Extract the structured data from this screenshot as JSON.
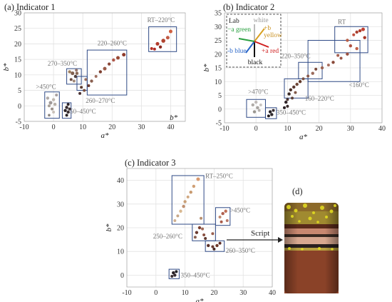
{
  "figure": {
    "script_label": "Script",
    "photo_label": "(d)"
  },
  "chart_data": [
    {
      "type": "scatter",
      "title": "(a) Indicator 1",
      "xlabel": "a*",
      "ylabel": "b*",
      "xlim": [
        -10,
        45
      ],
      "ylim": [
        -5,
        30
      ],
      "xticks": [
        -10,
        0,
        10,
        20,
        30,
        40
      ],
      "yticks": [
        -5,
        0,
        5,
        10,
        15,
        20,
        25,
        30
      ],
      "extra_x_label": "b*",
      "points": [
        {
          "x": 33.5,
          "y": 18.5,
          "c": "#b22d22",
          "r": 2
        },
        {
          "x": 34.5,
          "y": 18.3,
          "c": "#b02b25",
          "r": 2
        },
        {
          "x": 35.5,
          "y": 20.0,
          "c": "#b23a2a",
          "r": 2.5
        },
        {
          "x": 36.5,
          "y": 19.0,
          "c": "#8a2a20",
          "r": 2.2
        },
        {
          "x": 37.5,
          "y": 21.0,
          "c": "#b04430",
          "r": 2.8
        },
        {
          "x": 39.0,
          "y": 22.0,
          "c": "#c25a45",
          "r": 2.5
        },
        {
          "x": 40.0,
          "y": 24.0,
          "c": "#d06040",
          "r": 2.5
        },
        {
          "x": 24.0,
          "y": 16.5,
          "c": "#8f3a2a",
          "r": 2.5
        },
        {
          "x": 22.0,
          "y": 15.5,
          "c": "#9a4a35",
          "r": 2.5
        },
        {
          "x": 20.5,
          "y": 14.8,
          "c": "#b0584a",
          "r": 2.2
        },
        {
          "x": 19.0,
          "y": 13.5,
          "c": "#8b4a3b",
          "r": 2.2
        },
        {
          "x": 17.5,
          "y": 12.0,
          "c": "#9a5a48",
          "r": 2.5
        },
        {
          "x": 16.0,
          "y": 11.0,
          "c": "#7d4030",
          "r": 2.2
        },
        {
          "x": 14.5,
          "y": 9.5,
          "c": "#a07060",
          "r": 2
        },
        {
          "x": 13.0,
          "y": 8.0,
          "c": "#8a6050",
          "r": 2.2
        },
        {
          "x": 12.0,
          "y": 6.5,
          "c": "#6b3b30",
          "r": 2
        },
        {
          "x": 11.0,
          "y": 8.5,
          "c": "#9a7060",
          "r": 2
        },
        {
          "x": 10.5,
          "y": 5.0,
          "c": "#7a5040",
          "r": 2
        },
        {
          "x": 9.5,
          "y": 6.0,
          "c": "#5a3a30",
          "r": 2
        },
        {
          "x": 9.0,
          "y": 4.0,
          "c": "#4a3030",
          "r": 2
        },
        {
          "x": 5.5,
          "y": 11.0,
          "c": "#a08060",
          "r": 2.2
        },
        {
          "x": 6.5,
          "y": 10.5,
          "c": "#806050",
          "r": 2.5
        },
        {
          "x": 7.5,
          "y": 9.5,
          "c": "#504040",
          "r": 2.2
        },
        {
          "x": 8.0,
          "y": 10.5,
          "c": "#8a6a58",
          "r": 2.2
        },
        {
          "x": 6.0,
          "y": 8.5,
          "c": "#6a4a40",
          "r": 2
        },
        {
          "x": 7.0,
          "y": 8.0,
          "c": "#a08878",
          "r": 2
        },
        {
          "x": 7.8,
          "y": 11.5,
          "c": "#9a7a70",
          "r": 2
        },
        {
          "x": -2.0,
          "y": 2.5,
          "c": "#b0aaa8",
          "r": 2.2
        },
        {
          "x": -1.0,
          "y": 1.0,
          "c": "#a09a98",
          "r": 2.5
        },
        {
          "x": 0.0,
          "y": 2.0,
          "c": "#c0b8b0",
          "r": 2.2
        },
        {
          "x": -1.5,
          "y": 0.0,
          "c": "#a8a098",
          "r": 2
        },
        {
          "x": 0.5,
          "y": 0.5,
          "c": "#b8b0a8",
          "r": 2.2
        },
        {
          "x": -0.5,
          "y": -1.0,
          "c": "#9a9088",
          "r": 2
        },
        {
          "x": 0.0,
          "y": -2.0,
          "c": "#c8c0b8",
          "r": 2
        },
        {
          "x": -1.5,
          "y": -3.0,
          "c": "#8a8480",
          "r": 1.8
        },
        {
          "x": 1.0,
          "y": 3.5,
          "c": "#a8a0a0",
          "r": 2
        },
        {
          "x": 4.0,
          "y": -1.5,
          "c": "#2a2226",
          "r": 2.2
        },
        {
          "x": 4.5,
          "y": -0.5,
          "c": "#352a2e",
          "r": 2.2
        },
        {
          "x": 5.0,
          "y": -2.0,
          "c": "#3a3034",
          "r": 2.2
        },
        {
          "x": 4.5,
          "y": -3.0,
          "c": "#252024",
          "r": 2
        },
        {
          "x": 5.5,
          "y": -1.0,
          "c": "#403438",
          "r": 2
        },
        {
          "x": 5.0,
          "y": 0.5,
          "c": "#2e2428",
          "r": 2
        }
      ],
      "boxes": [
        {
          "x0": 32.5,
          "x1": 42.0,
          "y0": 17.5,
          "y1": 25.5,
          "label": "RT–220°C",
          "lx": 32.0,
          "ly": 27.0
        },
        {
          "x0": 11.5,
          "x1": 25.0,
          "y0": 3.5,
          "y1": 18.0,
          "label": "220–260°C",
          "lx": 15.0,
          "ly": 19.5
        },
        {
          "x0": 4.5,
          "x1": 9.5,
          "y0": 7.0,
          "y1": 12.0,
          "label": "270–350°C",
          "lx": -2.0,
          "ly": 13.0
        },
        {
          "x0": 8.0,
          "x1": 11.5,
          "y0": 5.0,
          "y1": 9.5,
          "label": "260–270°C",
          "lx": 11.0,
          "ly": 1.0
        },
        {
          "x0": -3.0,
          "x1": 2.0,
          "y0": -4.0,
          "y1": 4.5,
          "label": ">450°C",
          "lx": -6.0,
          "ly": 5.5
        },
        {
          "x0": 3.0,
          "x1": 6.0,
          "y0": -4.0,
          "y1": 1.0,
          "label": "350–450°C",
          "lx": 4.5,
          "ly": -2.5
        }
      ]
    },
    {
      "type": "scatter",
      "title": "(b) Indicator 2",
      "xlabel": "a*",
      "ylabel": "b*",
      "xlim": [
        -10,
        40
      ],
      "ylim": [
        -5,
        35
      ],
      "xticks": [
        -10,
        0,
        10,
        20,
        30,
        40
      ],
      "yticks": [
        -5,
        0,
        5,
        10,
        15,
        20,
        25,
        30,
        35
      ],
      "points": [
        {
          "x": 34.0,
          "y": 29.0,
          "c": "#c04030",
          "r": 2.5
        },
        {
          "x": 33.0,
          "y": 28.5,
          "c": "#b03a2a",
          "r": 2.2
        },
        {
          "x": 32.0,
          "y": 28.0,
          "c": "#a84030",
          "r": 2.2
        },
        {
          "x": 31.0,
          "y": 27.0,
          "c": "#c05040",
          "r": 2
        },
        {
          "x": 29.0,
          "y": 25.0,
          "c": "#b86048",
          "r": 2.2
        },
        {
          "x": 34.5,
          "y": 26.0,
          "c": "#a83525",
          "r": 2.2
        },
        {
          "x": 32.0,
          "y": 22.0,
          "c": "#c06048",
          "r": 2.2
        },
        {
          "x": 30.0,
          "y": 23.0,
          "c": "#b05040",
          "r": 2.2
        },
        {
          "x": 29.0,
          "y": 20.0,
          "c": "#9a5040",
          "r": 2.2
        },
        {
          "x": 27.0,
          "y": 18.5,
          "c": "#9a5545",
          "r": 2
        },
        {
          "x": 26.0,
          "y": 19.5,
          "c": "#a86050",
          "r": 2
        },
        {
          "x": 24.5,
          "y": 17.0,
          "c": "#8a4a3a",
          "r": 2.2
        },
        {
          "x": 23.0,
          "y": 16.0,
          "c": "#aa7060",
          "r": 2
        },
        {
          "x": 21.0,
          "y": 15.0,
          "c": "#9a6252",
          "r": 2.2
        },
        {
          "x": 19.0,
          "y": 14.5,
          "c": "#7a4a3a",
          "r": 2
        },
        {
          "x": 18.0,
          "y": 13.0,
          "c": "#9a6a5a",
          "r": 2.2
        },
        {
          "x": 16.5,
          "y": 12.0,
          "c": "#8a5a4a",
          "r": 2
        },
        {
          "x": 15.0,
          "y": 11.0,
          "c": "#7a5040",
          "r": 2
        },
        {
          "x": 14.0,
          "y": 10.0,
          "c": "#603828",
          "r": 2.2
        },
        {
          "x": 13.0,
          "y": 9.0,
          "c": "#704838",
          "r": 2.2
        },
        {
          "x": 12.0,
          "y": 8.0,
          "c": "#5a3830",
          "r": 2.2
        },
        {
          "x": 11.0,
          "y": 7.0,
          "c": "#4a3028",
          "r": 2.2
        },
        {
          "x": 12.5,
          "y": 6.0,
          "c": "#805848",
          "r": 2
        },
        {
          "x": 10.5,
          "y": 5.5,
          "c": "#3a2a26",
          "r": 2.2
        },
        {
          "x": 11.5,
          "y": 4.0,
          "c": "#5a4038",
          "r": 2
        },
        {
          "x": 10.0,
          "y": 3.5,
          "c": "#4a3430",
          "r": 2
        },
        {
          "x": 9.5,
          "y": 2.5,
          "c": "#2e2226",
          "r": 2.2
        },
        {
          "x": 10.0,
          "y": 1.0,
          "c": "#3a2c2c",
          "r": 2
        },
        {
          "x": 9.0,
          "y": 0.5,
          "c": "#2a2024",
          "r": 2
        },
        {
          "x": -1.0,
          "y": 1.5,
          "c": "#b0aca8",
          "r": 2.2
        },
        {
          "x": 0.0,
          "y": 2.5,
          "c": "#c0bab8",
          "r": 2.2
        },
        {
          "x": 0.5,
          "y": 0.5,
          "c": "#a8a4a0",
          "r": 2.2
        },
        {
          "x": -0.5,
          "y": -1.0,
          "c": "#9a9690",
          "r": 2.2
        },
        {
          "x": 1.0,
          "y": -0.5,
          "c": "#b8b4b0",
          "r": 2
        },
        {
          "x": 1.5,
          "y": 1.5,
          "c": "#c8c4c0",
          "r": 2
        },
        {
          "x": 4.5,
          "y": -1.0,
          "c": "#252024",
          "r": 2.2
        },
        {
          "x": 5.0,
          "y": -2.0,
          "c": "#302a2e",
          "r": 2.2
        },
        {
          "x": 5.5,
          "y": -0.5,
          "c": "#3a3034",
          "r": 2
        },
        {
          "x": 4.0,
          "y": -2.5,
          "c": "#201a1e",
          "r": 2
        }
      ],
      "boxes": [
        {
          "x0": 25.0,
          "x1": 35.5,
          "y0": 20.5,
          "y1": 30.0,
          "label": "RT",
          "lx": 26.0,
          "ly": 31.0
        },
        {
          "x0": 16.5,
          "x1": 33.0,
          "y0": 10.0,
          "y1": 25.0,
          "label": "<160°C",
          "lx": 29.5,
          "ly": 8.0
        },
        {
          "x0": 13.5,
          "x1": 21.0,
          "y0": 11.0,
          "y1": 17.0,
          "label": "220–350°C",
          "lx": 8.0,
          "ly": 18.5
        },
        {
          "x0": 9.0,
          "x1": 16.5,
          "y0": 4.0,
          "y1": 11.0,
          "label": "160–220°C",
          "lx": 15.5,
          "ly": 3.0
        },
        {
          "x0": -3.0,
          "x1": 3.0,
          "y0": -3.0,
          "y1": 3.5,
          "label": ">470°C",
          "lx": -2.5,
          "ly": 5.5
        },
        {
          "x0": 3.0,
          "x1": 6.5,
          "y0": -3.5,
          "y1": 0.5,
          "label": "350–450°C",
          "lx": 6.5,
          "ly": -2.0
        }
      ],
      "inset": {
        "title": "Lab",
        "white": "white",
        "black": "black",
        "plus_b": "+b",
        "yellow": "yellow",
        "minus_a": "−a green",
        "plus_a": "+a red",
        "minus_b": "-b blue"
      }
    },
    {
      "type": "scatter",
      "title": "(c) Indicator 3",
      "xlabel": "a*",
      "ylabel": "b*",
      "xlim": [
        -10,
        40
      ],
      "ylim": [
        -5,
        45
      ],
      "xticks": [
        -10,
        0,
        10,
        20,
        30,
        40
      ],
      "yticks": [
        0,
        10,
        20,
        30,
        40
      ],
      "points": [
        {
          "x": 14.5,
          "y": 40.5,
          "c": "#d89a70",
          "r": 2.5
        },
        {
          "x": 13.0,
          "y": 37.5,
          "c": "#d0a075",
          "r": 2.2
        },
        {
          "x": 12.0,
          "y": 35.0,
          "c": "#c89a70",
          "r": 2.2
        },
        {
          "x": 11.0,
          "y": 33.0,
          "c": "#d0a880",
          "r": 2
        },
        {
          "x": 10.0,
          "y": 31.0,
          "c": "#c8a078",
          "r": 2.2
        },
        {
          "x": 9.5,
          "y": 29.0,
          "c": "#c09070",
          "r": 2.2
        },
        {
          "x": 8.5,
          "y": 27.0,
          "c": "#d8b890",
          "r": 2.2
        },
        {
          "x": 7.5,
          "y": 25.0,
          "c": "#c8a888",
          "r": 2
        },
        {
          "x": 6.5,
          "y": 23.0,
          "c": "#d0b090",
          "r": 2
        },
        {
          "x": 15.5,
          "y": 24.0,
          "c": "#b89070",
          "r": 2
        },
        {
          "x": 24.0,
          "y": 27.0,
          "c": "#c07058",
          "r": 2.2
        },
        {
          "x": 23.0,
          "y": 26.0,
          "c": "#b06050",
          "r": 2.2
        },
        {
          "x": 22.0,
          "y": 24.5,
          "c": "#c08870",
          "r": 2
        },
        {
          "x": 22.5,
          "y": 22.5,
          "c": "#a85a48",
          "r": 2
        },
        {
          "x": 24.5,
          "y": 23.0,
          "c": "#b87868",
          "r": 2
        },
        {
          "x": 15.0,
          "y": 20.0,
          "c": "#7a4030",
          "r": 2.2
        },
        {
          "x": 14.0,
          "y": 18.0,
          "c": "#6a3a30",
          "r": 2.2
        },
        {
          "x": 16.5,
          "y": 17.0,
          "c": "#8a5040",
          "r": 2
        },
        {
          "x": 13.5,
          "y": 16.0,
          "c": "#8a6050",
          "r": 2
        },
        {
          "x": 17.0,
          "y": 15.5,
          "c": "#603a30",
          "r": 2
        },
        {
          "x": 19.5,
          "y": 17.5,
          "c": "#9a6050",
          "r": 2
        },
        {
          "x": 16.0,
          "y": 19.5,
          "c": "#a06a58",
          "r": 2
        },
        {
          "x": 18.0,
          "y": 12.5,
          "c": "#5a3028",
          "r": 2.2
        },
        {
          "x": 19.5,
          "y": 12.0,
          "c": "#6a3a30",
          "r": 2
        },
        {
          "x": 21.0,
          "y": 12.5,
          "c": "#703a2a",
          "r": 2.2
        },
        {
          "x": 22.0,
          "y": 13.5,
          "c": "#5a2a24",
          "r": 2
        },
        {
          "x": 20.0,
          "y": 11.0,
          "c": "#4a2a26",
          "r": 2
        },
        {
          "x": 6.0,
          "y": 1.0,
          "c": "#2a2226",
          "r": 2.2
        },
        {
          "x": 6.5,
          "y": 0.0,
          "c": "#352a2e",
          "r": 2.2
        },
        {
          "x": 7.0,
          "y": 1.5,
          "c": "#202024",
          "r": 2
        },
        {
          "x": 5.5,
          "y": -0.5,
          "c": "#3a3034",
          "r": 2
        }
      ],
      "boxes": [
        {
          "x0": 5.5,
          "x1": 16.5,
          "y0": 21.5,
          "y1": 42.0,
          "label": "RT–250°C",
          "lx": 17.0,
          "ly": 41.0
        },
        {
          "x0": 20.5,
          "x1": 25.5,
          "y0": 21.0,
          "y1": 28.5,
          "label": ">450°C",
          "lx": 25.5,
          "ly": 26.5
        },
        {
          "x0": 12.5,
          "x1": 20.5,
          "y0": 14.5,
          "y1": 21.5,
          "label": "250–260°C",
          "lx": -1.0,
          "ly": 15.5
        },
        {
          "x0": 17.0,
          "x1": 23.5,
          "y0": 10.0,
          "y1": 14.5,
          "label": "260–350°C",
          "lx": 24.0,
          "ly": 9.5
        },
        {
          "x0": 4.5,
          "x1": 8.0,
          "y0": -1.5,
          "y1": 2.5,
          "label": "350–450°C",
          "lx": 8.5,
          "ly": -1.0
        }
      ]
    }
  ]
}
